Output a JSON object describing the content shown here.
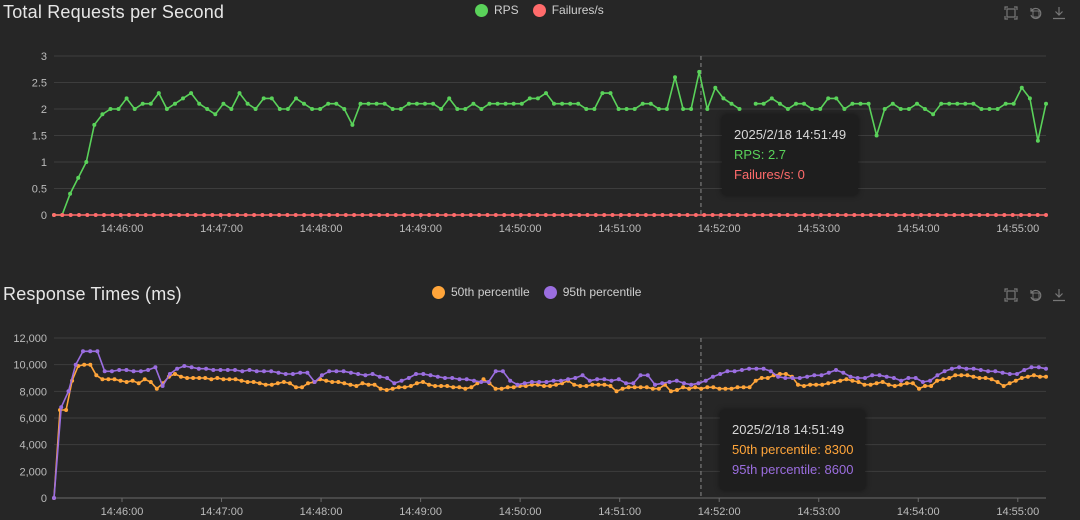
{
  "charts": {
    "rps": {
      "title": "Total Requests per Second",
      "legend": [
        {
          "name": "RPS",
          "color": "#5ad25a"
        },
        {
          "name": "Failures/s",
          "color": "#ff6b6b"
        }
      ],
      "tooltip": {
        "time": "2025/2/18 14:51:49",
        "line1": "RPS: 2.7",
        "line2": "Failures/s: 0"
      }
    },
    "rt": {
      "title": "Response Times (ms)",
      "legend": [
        {
          "name": "50th percentile",
          "color": "#ffa53a"
        },
        {
          "name": "95th percentile",
          "color": "#9b6ee0"
        }
      ],
      "tooltip": {
        "time": "2025/2/18 14:51:49",
        "line1": "50th percentile: 8300",
        "line2": "95th percentile: 8600"
      }
    }
  },
  "toolbox": [
    {
      "icon": "zoom-icon"
    },
    {
      "icon": "restore-icon"
    },
    {
      "icon": "download-icon"
    }
  ],
  "chart_data": [
    {
      "type": "line",
      "title": "Total Requests per Second",
      "x_ticks": [
        "14:46:00",
        "14:47:00",
        "14:48:00",
        "14:49:00",
        "14:50:00",
        "14:51:00",
        "14:52:00",
        "14:53:00",
        "14:54:00",
        "14:55:00"
      ],
      "x_range": [
        "14:45:19",
        "14:55:17"
      ],
      "ylim": [
        0,
        3
      ],
      "y_ticks": [
        "0",
        "0.5",
        "1",
        "1.5",
        "2",
        "2.5",
        "3"
      ],
      "grid": true,
      "legend_position": "top-center",
      "cursor_time": "14:51:49",
      "series": [
        {
          "name": "RPS",
          "color": "#5ad25a",
          "values": [
            0,
            0,
            0.4,
            0.7,
            1.0,
            1.7,
            1.9,
            2.0,
            2.0,
            2.2,
            2.0,
            2.1,
            2.1,
            2.3,
            2.0,
            2.1,
            2.2,
            2.3,
            2.1,
            2.0,
            1.9,
            2.1,
            2.0,
            2.3,
            2.1,
            2.0,
            2.2,
            2.2,
            2.0,
            2.0,
            2.2,
            2.1,
            2.0,
            2.0,
            2.1,
            2.1,
            2.0,
            1.7,
            2.1,
            2.1,
            2.1,
            2.1,
            2.0,
            2.0,
            2.1,
            2.1,
            2.1,
            2.1,
            2.0,
            2.2,
            2.0,
            2.0,
            2.1,
            2.0,
            2.1,
            2.1,
            2.1,
            2.1,
            2.1,
            2.2,
            2.2,
            2.3,
            2.1,
            2.1,
            2.1,
            2.1,
            2.0,
            2.0,
            2.3,
            2.3,
            2.0,
            2.0,
            2.0,
            2.1,
            2.1,
            2.0,
            2.0,
            2.6,
            2.0,
            2.0,
            2.7,
            2.0,
            2.4,
            2.2,
            2.1,
            2.0,
            null,
            2.1,
            2.1,
            2.2,
            2.1,
            2.0,
            2.1,
            2.1,
            2.0,
            2.0,
            2.2,
            2.2,
            2.0,
            2.1,
            2.1,
            2.1,
            1.5,
            2.0,
            2.1,
            2.0,
            2.0,
            2.1,
            2.0,
            1.9,
            2.1,
            2.1,
            2.1,
            2.1,
            2.1,
            2.0,
            2.0,
            2.0,
            2.1,
            2.1,
            2.4,
            2.2,
            1.4,
            2.1
          ]
        },
        {
          "name": "Failures/s",
          "color": "#ff6b6b",
          "constant": 0
        }
      ]
    },
    {
      "type": "line",
      "title": "Response Times (ms)",
      "x_ticks": [
        "14:46:00",
        "14:47:00",
        "14:48:00",
        "14:49:00",
        "14:50:00",
        "14:51:00",
        "14:52:00",
        "14:53:00",
        "14:54:00",
        "14:55:00"
      ],
      "x_range": [
        "14:45:19",
        "14:55:17"
      ],
      "ylim": [
        0,
        12000
      ],
      "y_ticks": [
        "0",
        "2,000",
        "4,000",
        "6,000",
        "8,000",
        "10,000",
        "12,000"
      ],
      "grid": true,
      "legend_position": "top-center",
      "cursor_time": "14:51:49",
      "series": [
        {
          "name": "50th percentile",
          "color": "#ffa53a",
          "values": [
            0,
            6600,
            6600,
            8800,
            9900,
            10000,
            10000,
            9200,
            8900,
            8900,
            8900,
            8800,
            8700,
            8800,
            8600,
            8900,
            8700,
            8200,
            8600,
            9100,
            9300,
            9100,
            9000,
            9000,
            9000,
            9000,
            8900,
            9000,
            8900,
            8900,
            8900,
            8800,
            8700,
            8700,
            8600,
            8500,
            8500,
            8600,
            8700,
            8600,
            8300,
            8300,
            8600,
            8700,
            8900,
            8800,
            8700,
            8700,
            8600,
            8500,
            8400,
            8600,
            8500,
            8500,
            8200,
            8100,
            8200,
            8300,
            8300,
            8400,
            8600,
            8700,
            8500,
            8400,
            8400,
            8400,
            8300,
            8300,
            8200,
            8300,
            8600,
            8900,
            8600,
            8200,
            8200,
            8300,
            8300,
            8400,
            8400,
            8500,
            8500,
            8400,
            8400,
            8500,
            8600,
            8800,
            8500,
            8400,
            8400,
            8500,
            8500,
            8500,
            8400,
            8000,
            8200,
            8300,
            8300,
            8300,
            8300,
            8200,
            8200,
            8500,
            8000,
            8100,
            8300,
            8200,
            8300,
            8200,
            8300,
            8300,
            8200,
            8200,
            8200,
            8300,
            8300,
            8300,
            8800,
            9000,
            9000,
            9200,
            9300,
            9300,
            9100,
            8500,
            8400,
            8500,
            8500,
            8500,
            8600,
            8700,
            8800,
            8900,
            8800,
            8700,
            8500,
            8500,
            8600,
            8700,
            8500,
            8400,
            8500,
            8600,
            8600,
            8200,
            8400,
            8400,
            8800,
            8900,
            9000,
            9200,
            9200,
            9200,
            9100,
            9000,
            9000,
            8900,
            8700,
            8400,
            8600,
            8800,
            9000,
            9100,
            9200,
            9100,
            9100
          ]
        },
        {
          "name": "95th percentile",
          "color": "#9b6ee0",
          "values": [
            0,
            6800,
            8000,
            10000,
            11000,
            11000,
            11000,
            9500,
            9500,
            9600,
            9600,
            9500,
            9500,
            9600,
            9800,
            8400,
            9300,
            9700,
            9900,
            9800,
            9700,
            9700,
            9600,
            9600,
            9600,
            9600,
            9500,
            9600,
            9500,
            9500,
            9500,
            9400,
            9300,
            9300,
            9400,
            9400,
            8700,
            9200,
            9500,
            9500,
            9500,
            9400,
            9300,
            9200,
            9300,
            9100,
            9000,
            8600,
            8800,
            9000,
            9300,
            9300,
            9200,
            9100,
            9000,
            9000,
            8900,
            8900,
            8800,
            8700,
            8700,
            9500,
            9500,
            8800,
            8500,
            8600,
            8700,
            8700,
            8700,
            8800,
            8800,
            8900,
            9000,
            9200,
            8800,
            8900,
            8900,
            8800,
            8900,
            8600,
            8600,
            9200,
            9200,
            8500,
            8600,
            8700,
            8800,
            8600,
            8500,
            8600,
            8800,
            9100,
            9300,
            9500,
            9500,
            9600,
            9700,
            9700,
            9700,
            9500,
            9100,
            9000,
            9000,
            9000,
            9100,
            9200,
            9200,
            9400,
            9600,
            9400,
            9100,
            9000,
            9000,
            9200,
            9200,
            9100,
            9000,
            8800,
            9000,
            9000,
            8700,
            8800,
            9200,
            9500,
            9700,
            9800,
            9700,
            9700,
            9600,
            9500,
            9500,
            9400,
            9300,
            9300,
            9600,
            9800,
            9800,
            9700
          ]
        }
      ]
    }
  ]
}
